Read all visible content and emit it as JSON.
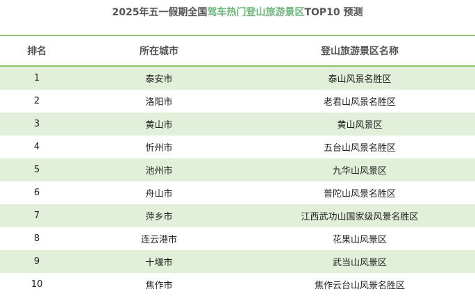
{
  "title": {
    "prefix": "2025年五一假期全国",
    "highlight": "驾车热门登山旅游景区",
    "suffix": "TOP10 预测"
  },
  "colors": {
    "accent": "#6ab87a",
    "row_bg": "#e2efd9",
    "rule": "#8cc26c"
  },
  "headers": [
    "排名",
    "所在城市",
    "登山旅游景区名称"
  ],
  "rows": [
    {
      "rank": "1",
      "city": "泰安市",
      "scenic": "泰山风景名胜区"
    },
    {
      "rank": "2",
      "city": "洛阳市",
      "scenic": "老君山风景名胜区"
    },
    {
      "rank": "3",
      "city": "黄山市",
      "scenic": "黄山风景区"
    },
    {
      "rank": "4",
      "city": "忻州市",
      "scenic": "五台山风景名胜区"
    },
    {
      "rank": "5",
      "city": "池州市",
      "scenic": "九华山风景区"
    },
    {
      "rank": "6",
      "city": "舟山市",
      "scenic": "普陀山风景名胜区"
    },
    {
      "rank": "7",
      "city": "萍乡市",
      "scenic": "江西武功山国家级风景名胜区"
    },
    {
      "rank": "8",
      "city": "连云港市",
      "scenic": "花果山风景区"
    },
    {
      "rank": "9",
      "city": "十堰市",
      "scenic": "武当山风景区"
    },
    {
      "rank": "10",
      "city": "焦作市",
      "scenic": "焦作云台山风景名胜区"
    }
  ]
}
